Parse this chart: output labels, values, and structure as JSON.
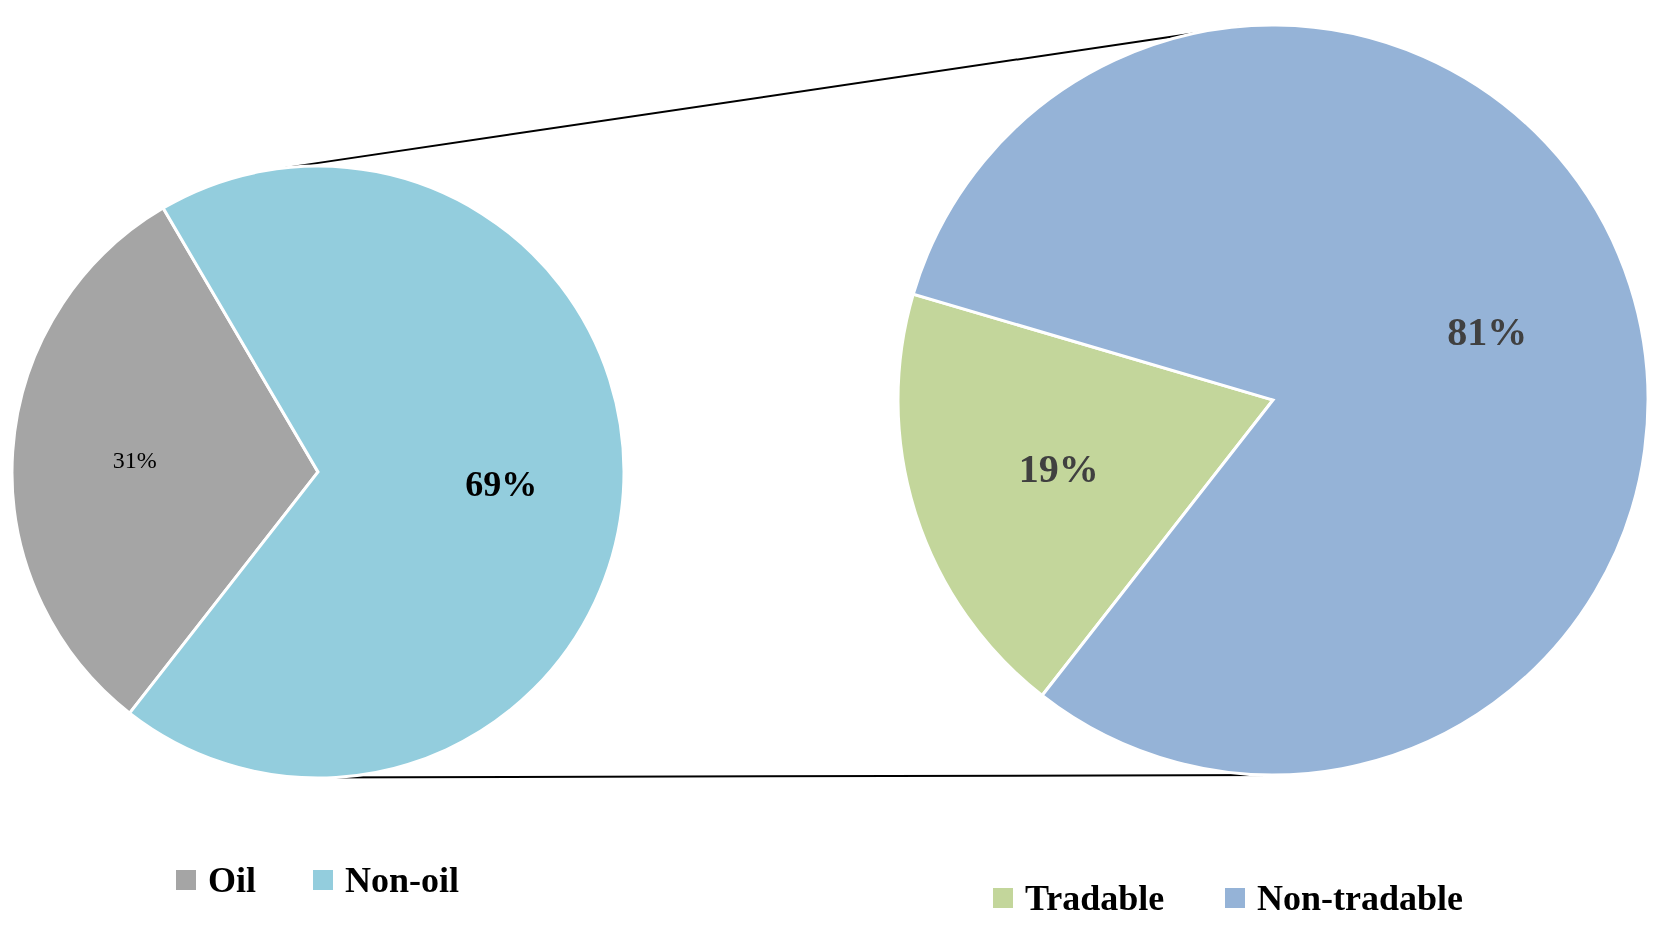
{
  "chart_data": [
    {
      "type": "pie",
      "categories": [
        "Oil",
        "Non-oil"
      ],
      "values": [
        31,
        69
      ],
      "colors": [
        "#a5a5a5",
        "#93cddd"
      ],
      "value_labels": [
        "31%",
        "69%"
      ],
      "legend": "bottom"
    },
    {
      "type": "pie",
      "categories": [
        "Tradable",
        "Non-tradable"
      ],
      "values": [
        19,
        81
      ],
      "colors": [
        "#c3d69b",
        "#95b3d7"
      ],
      "value_labels": [
        "19%",
        "81%"
      ],
      "legend": "bottom"
    }
  ]
}
